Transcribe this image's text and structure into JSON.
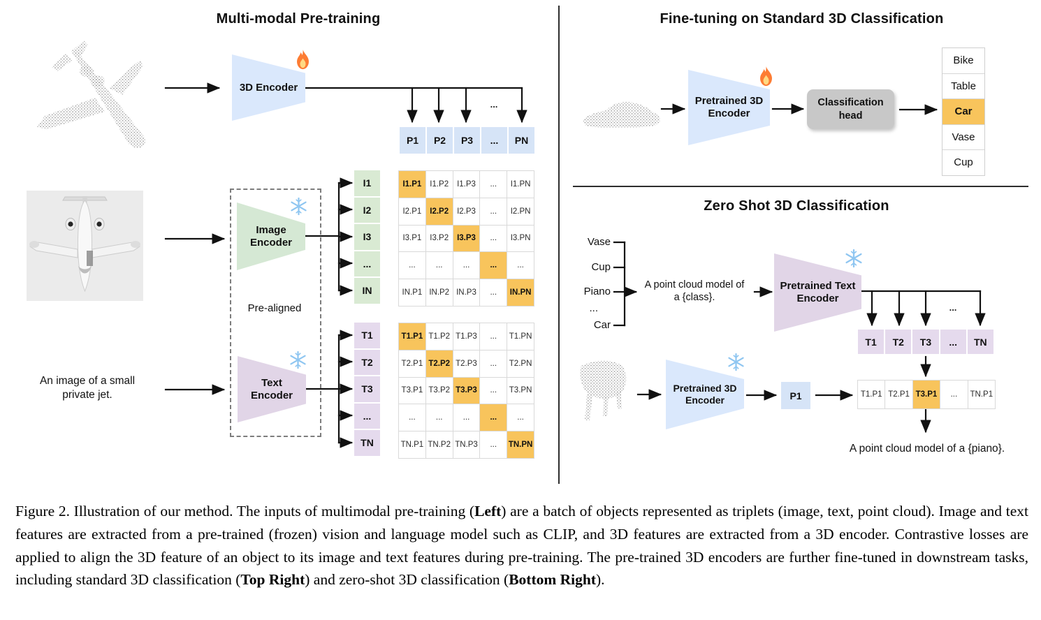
{
  "colors": {
    "enc_blue": "#dae8fc",
    "cell_blue": "#d6e4f7",
    "enc_green": "#d5e8d4",
    "cell_green": "#d9ead3",
    "enc_purple": "#e1d5e7",
    "cell_purple": "#e5daed",
    "orange": "#f8c45c",
    "head_gray": "#c8c8c8"
  },
  "icons": {
    "fire": "trainable-fire",
    "snowflake": "frozen-snowflake"
  },
  "left_panel": {
    "title": "Multi-modal Pre-training",
    "encoder_3d_label": "3D Encoder",
    "image_encoder_label": "Image\nEncoder",
    "text_encoder_label": "Text\nEncoder",
    "pre_aligned_label": "Pre-aligned",
    "input_text": "An image of a small\nprivate jet.",
    "ellipsis": "...",
    "p_row": [
      "P1",
      "P2",
      "P3",
      "...",
      "PN"
    ],
    "i_col": [
      "I1",
      "I2",
      "I3",
      "...",
      "IN"
    ],
    "t_col": [
      "T1",
      "T2",
      "T3",
      "...",
      "TN"
    ],
    "image_matrix": [
      [
        "I1.P1",
        "I1.P2",
        "I1.P3",
        "...",
        "I1.PN"
      ],
      [
        "I2.P1",
        "I2.P2",
        "I2.P3",
        "...",
        "I2.PN"
      ],
      [
        "I3.P1",
        "I3.P2",
        "I3.P3",
        "...",
        "I3.PN"
      ],
      [
        "...",
        "...",
        "...",
        "...",
        "..."
      ],
      [
        "IN.P1",
        "IN.P2",
        "IN.P3",
        "...",
        "IN.PN"
      ]
    ],
    "text_matrix": [
      [
        "T1.P1",
        "T1.P2",
        "T1.P3",
        "...",
        "T1.PN"
      ],
      [
        "T2.P1",
        "T2.P2",
        "T2.P3",
        "...",
        "T2.PN"
      ],
      [
        "T3.P1",
        "T3.P2",
        "T3.P3",
        "...",
        "T3.PN"
      ],
      [
        "...",
        "...",
        "...",
        "...",
        "..."
      ],
      [
        "TN.P1",
        "TN.P2",
        "TN.P3",
        "...",
        "TN.PN"
      ]
    ]
  },
  "top_right": {
    "title": "Fine-tuning on Standard 3D Classification",
    "encoder_label": "Pretrained 3D\nEncoder",
    "head_label": "Classification\nhead",
    "classes": [
      "Bike",
      "Table",
      "Car",
      "Vase",
      "Cup"
    ],
    "highlighted_class": "Car"
  },
  "bottom_right": {
    "title": "Zero Shot 3D Classification",
    "class_list": [
      "Vase",
      "Cup",
      "Piano",
      "...",
      "Car"
    ],
    "prompt_text": "A point cloud model of\na {class}.",
    "text_encoder_label": "Pretrained Text\nEncoder",
    "encoder_label": "Pretrained 3D\nEncoder",
    "p1_label": "P1",
    "ellipsis": "...",
    "t_row": [
      "T1",
      "T2",
      "T3",
      "...",
      "TN"
    ],
    "result_row": [
      "T1.P1",
      "T2.P1",
      "T3.P1",
      "...",
      "TN.P1"
    ],
    "result_highlight_index": 2,
    "result_prompt": "A point cloud model of a {piano}."
  },
  "caption": {
    "segments": [
      {
        "text": "Figure 2. Illustration of our method.  The inputs of multimodal pre-training (",
        "bold": false
      },
      {
        "text": "Left",
        "bold": true
      },
      {
        "text": ") are a batch of objects represented as triplets (image, text, point cloud).  Image and text features are extracted from a pre-trained (frozen) vision and language model such as CLIP, and 3D features are extracted from a 3D encoder.  Contrastive losses are applied to align the 3D feature of an object to its image and text features during pre-training.  The pre-trained 3D encoders are further fine-tuned in downstream tasks, including standard 3D classification (",
        "bold": false
      },
      {
        "text": "Top Right",
        "bold": true
      },
      {
        "text": ") and zero-shot 3D classification (",
        "bold": false
      },
      {
        "text": "Bottom Right",
        "bold": true
      },
      {
        "text": ").",
        "bold": false
      }
    ]
  }
}
